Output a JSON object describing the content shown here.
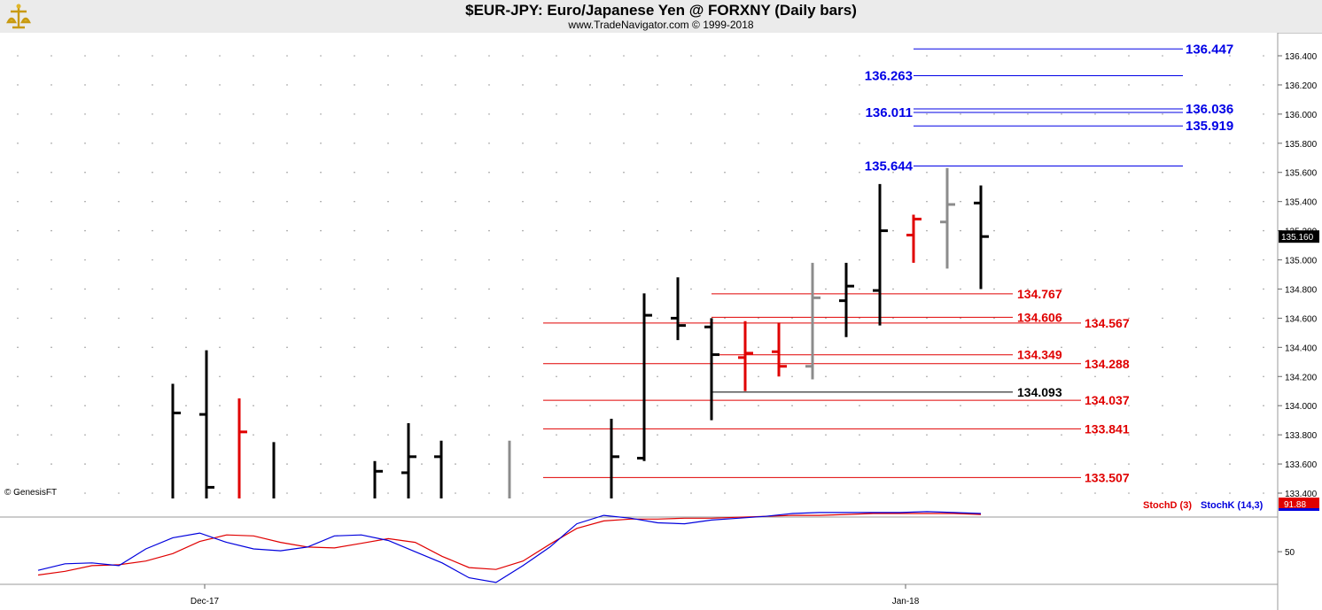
{
  "header": {
    "title": "$EUR-JPY:  Euro/Japanese Yen @ FORXNY  (Daily bars)",
    "subtitle": "www.TradeNavigator.com © 1999-2018"
  },
  "watermark": "© GenesisFT",
  "colors": {
    "background": "#ffffff",
    "up_bar": "#000000",
    "down_bar": "#e00000",
    "neutral_bar": "#8c8c8c",
    "blue_level": "#0000e6",
    "red_level": "#e00000",
    "stoch_d": "#e00000",
    "stoch_k": "#0000dd"
  },
  "chart_data": [
    {
      "type": "ohlc",
      "ylim": [
        133.38,
        136.55
      ],
      "y_ticks": [
        "133.400",
        "133.600",
        "133.800",
        "134.000",
        "134.200",
        "134.400",
        "134.600",
        "134.800",
        "135.000",
        "135.200",
        "135.400",
        "135.600",
        "135.800",
        "136.000",
        "136.200",
        "136.400"
      ],
      "x_labels": [
        "Dec-17",
        "Jan-18"
      ],
      "last_price": "135.160",
      "grid": true,
      "bars": [
        {
          "o": null,
          "h": 134.15,
          "l": 133.38,
          "c": 133.95,
          "color": "black"
        },
        {
          "o": 133.94,
          "h": 134.38,
          "l": 133.38,
          "c": 133.44,
          "color": "black"
        },
        {
          "o": null,
          "h": 134.05,
          "l": 133.38,
          "c": 133.82,
          "color": "red"
        },
        {
          "o": null,
          "h": 133.75,
          "l": 133.38,
          "c": null,
          "color": "black"
        },
        {
          "o": null,
          "h": 133.62,
          "l": 133.38,
          "c": 133.55,
          "color": "black"
        },
        {
          "o": 133.54,
          "h": 133.88,
          "l": 133.38,
          "c": 133.65,
          "color": "black"
        },
        {
          "o": 133.65,
          "h": 133.76,
          "l": 133.38,
          "c": null,
          "color": "black"
        },
        {
          "o": null,
          "h": 133.76,
          "l": 133.38,
          "c": null,
          "color": "gray"
        },
        {
          "o": null,
          "h": 133.91,
          "l": 133.38,
          "c": 133.65,
          "color": "black"
        },
        {
          "o": 133.64,
          "h": 134.77,
          "l": 133.62,
          "c": 134.62,
          "color": "black"
        },
        {
          "o": 134.6,
          "h": 134.88,
          "l": 134.45,
          "c": 134.55,
          "color": "black"
        },
        {
          "o": 134.54,
          "h": 134.6,
          "l": 133.9,
          "c": 134.35,
          "color": "black"
        },
        {
          "o": 134.33,
          "h": 134.58,
          "l": 134.1,
          "c": 134.36,
          "color": "red"
        },
        {
          "o": 134.37,
          "h": 134.57,
          "l": 134.2,
          "c": 134.27,
          "color": "red"
        },
        {
          "o": 134.27,
          "h": 134.98,
          "l": 134.18,
          "c": 134.74,
          "color": "gray"
        },
        {
          "o": 134.72,
          "h": 134.98,
          "l": 134.47,
          "c": 134.82,
          "color": "black"
        },
        {
          "o": 134.79,
          "h": 135.52,
          "l": 134.55,
          "c": 135.2,
          "color": "black"
        },
        {
          "o": 135.17,
          "h": 135.31,
          "l": 134.98,
          "c": 135.28,
          "color": "red"
        },
        {
          "o": 135.26,
          "h": 135.63,
          "l": 134.94,
          "c": 135.38,
          "color": "gray"
        },
        {
          "o": 135.39,
          "h": 135.51,
          "l": 134.8,
          "c": 135.16,
          "color": "black"
        }
      ],
      "levels": [
        {
          "value": 136.447,
          "label": "136.447",
          "color": "blue",
          "label_side": "right"
        },
        {
          "value": 136.263,
          "label": "136.263",
          "color": "blue",
          "label_side": "left"
        },
        {
          "value": 136.036,
          "label": "136.036",
          "color": "blue",
          "label_side": "right"
        },
        {
          "value": 136.011,
          "label": "136.011",
          "color": "blue",
          "label_side": "left"
        },
        {
          "value": 135.919,
          "label": "135.919",
          "color": "blue",
          "label_side": "right"
        },
        {
          "value": 135.644,
          "label": "135.644",
          "color": "blue",
          "label_side": "left"
        },
        {
          "value": 134.767,
          "label": "134.767",
          "color": "red",
          "label_side": "short"
        },
        {
          "value": 134.606,
          "label": "134.606",
          "color": "red",
          "label_side": "short"
        },
        {
          "value": 134.567,
          "label": "134.567",
          "color": "red",
          "label_side": "long"
        },
        {
          "value": 134.349,
          "label": "134.349",
          "color": "red",
          "label_side": "short"
        },
        {
          "value": 134.288,
          "label": "134.288",
          "color": "red",
          "label_side": "long"
        },
        {
          "value": 134.093,
          "label": "134.093",
          "color": "black",
          "label_side": "short"
        },
        {
          "value": 134.037,
          "label": "134.037",
          "color": "red",
          "label_side": "long"
        },
        {
          "value": 133.841,
          "label": "133.841",
          "color": "red",
          "label_side": "long"
        },
        {
          "value": 133.507,
          "label": "133.507",
          "color": "red",
          "label_side": "long"
        }
      ]
    },
    {
      "type": "line",
      "ylim": [
        15,
        110
      ],
      "y_ticks": [
        "50"
      ],
      "last_value": "91.88",
      "legend": [
        "StochD (3)",
        "StochK (14,3)"
      ],
      "series": [
        {
          "name": "StochD (3)",
          "color": "red",
          "values": [
            25,
            29,
            35,
            36,
            40,
            48,
            61,
            68,
            67,
            60,
            55,
            54,
            59,
            64,
            60,
            45,
            33,
            31,
            40,
            58,
            75,
            83,
            85,
            85,
            86,
            86,
            87,
            88,
            89,
            89,
            90,
            91,
            91,
            91,
            91,
            90
          ]
        },
        {
          "name": "StochK (14,3)",
          "color": "blue",
          "values": [
            30,
            37,
            38,
            35,
            53,
            65,
            70,
            60,
            53,
            51,
            55,
            67,
            68,
            62,
            50,
            38,
            22,
            17,
            35,
            55,
            80,
            89,
            86,
            81,
            80,
            84,
            86,
            88,
            91,
            92,
            92,
            92,
            92,
            93,
            92,
            91
          ]
        }
      ]
    }
  ]
}
